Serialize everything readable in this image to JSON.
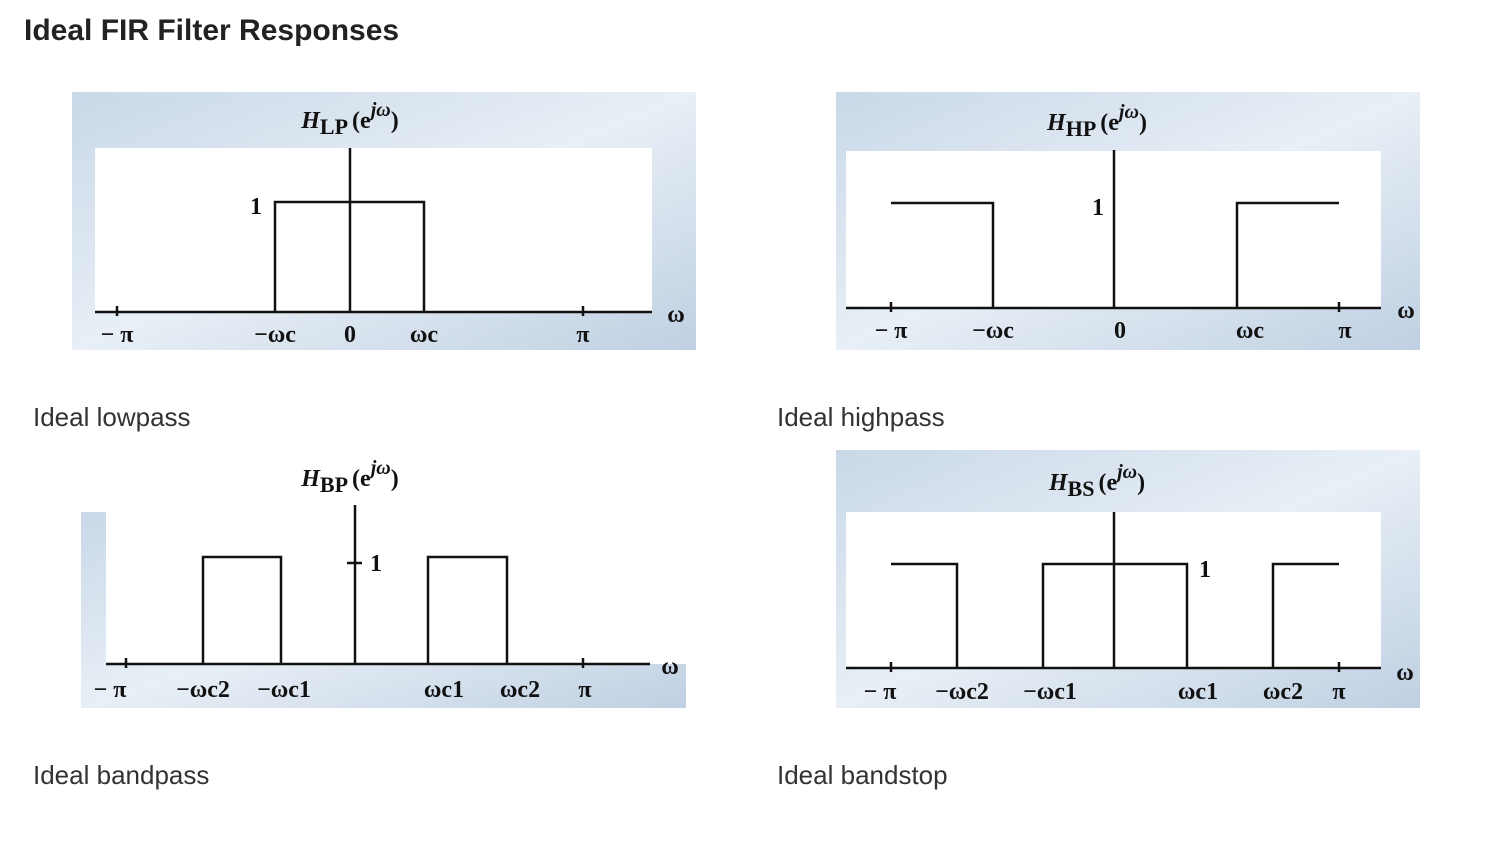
{
  "title": "Ideal FIR Filter Responses",
  "panels": [
    {
      "caption": "Ideal lowpass",
      "function": {
        "symbol": "H",
        "subscript": "LP",
        "open": "(e",
        "exponent": "jω",
        "close": ")"
      },
      "level_label": "1",
      "axis_label": "ω",
      "ticks": [
        "− π",
        "−ωc",
        "0",
        "ωc",
        "π"
      ]
    },
    {
      "caption": "Ideal highpass",
      "function": {
        "symbol": "H",
        "subscript": "HP",
        "open": "(e",
        "exponent": "jω",
        "close": ")"
      },
      "level_label": "1",
      "axis_label": "ω",
      "ticks": [
        "− π",
        "−ωc",
        "0",
        "ωc",
        "π"
      ]
    },
    {
      "caption": "Ideal bandpass",
      "function": {
        "symbol": "H",
        "subscript": "BP",
        "open": "(e",
        "exponent": "jω",
        "close": ")"
      },
      "level_label": "1",
      "axis_label": "ω",
      "ticks": [
        "− π",
        "−ωc2",
        "−ωc1",
        "ωc1",
        "ωc2",
        "π"
      ]
    },
    {
      "caption": "Ideal bandstop",
      "function": {
        "symbol": "H",
        "subscript": "BS",
        "open": "(e",
        "exponent": "jω",
        "close": ")"
      },
      "level_label": "1",
      "axis_label": "ω",
      "ticks": [
        "− π",
        "−ωc2",
        "−ωc1",
        "ωc1",
        "ωc2",
        "π"
      ]
    }
  ]
}
